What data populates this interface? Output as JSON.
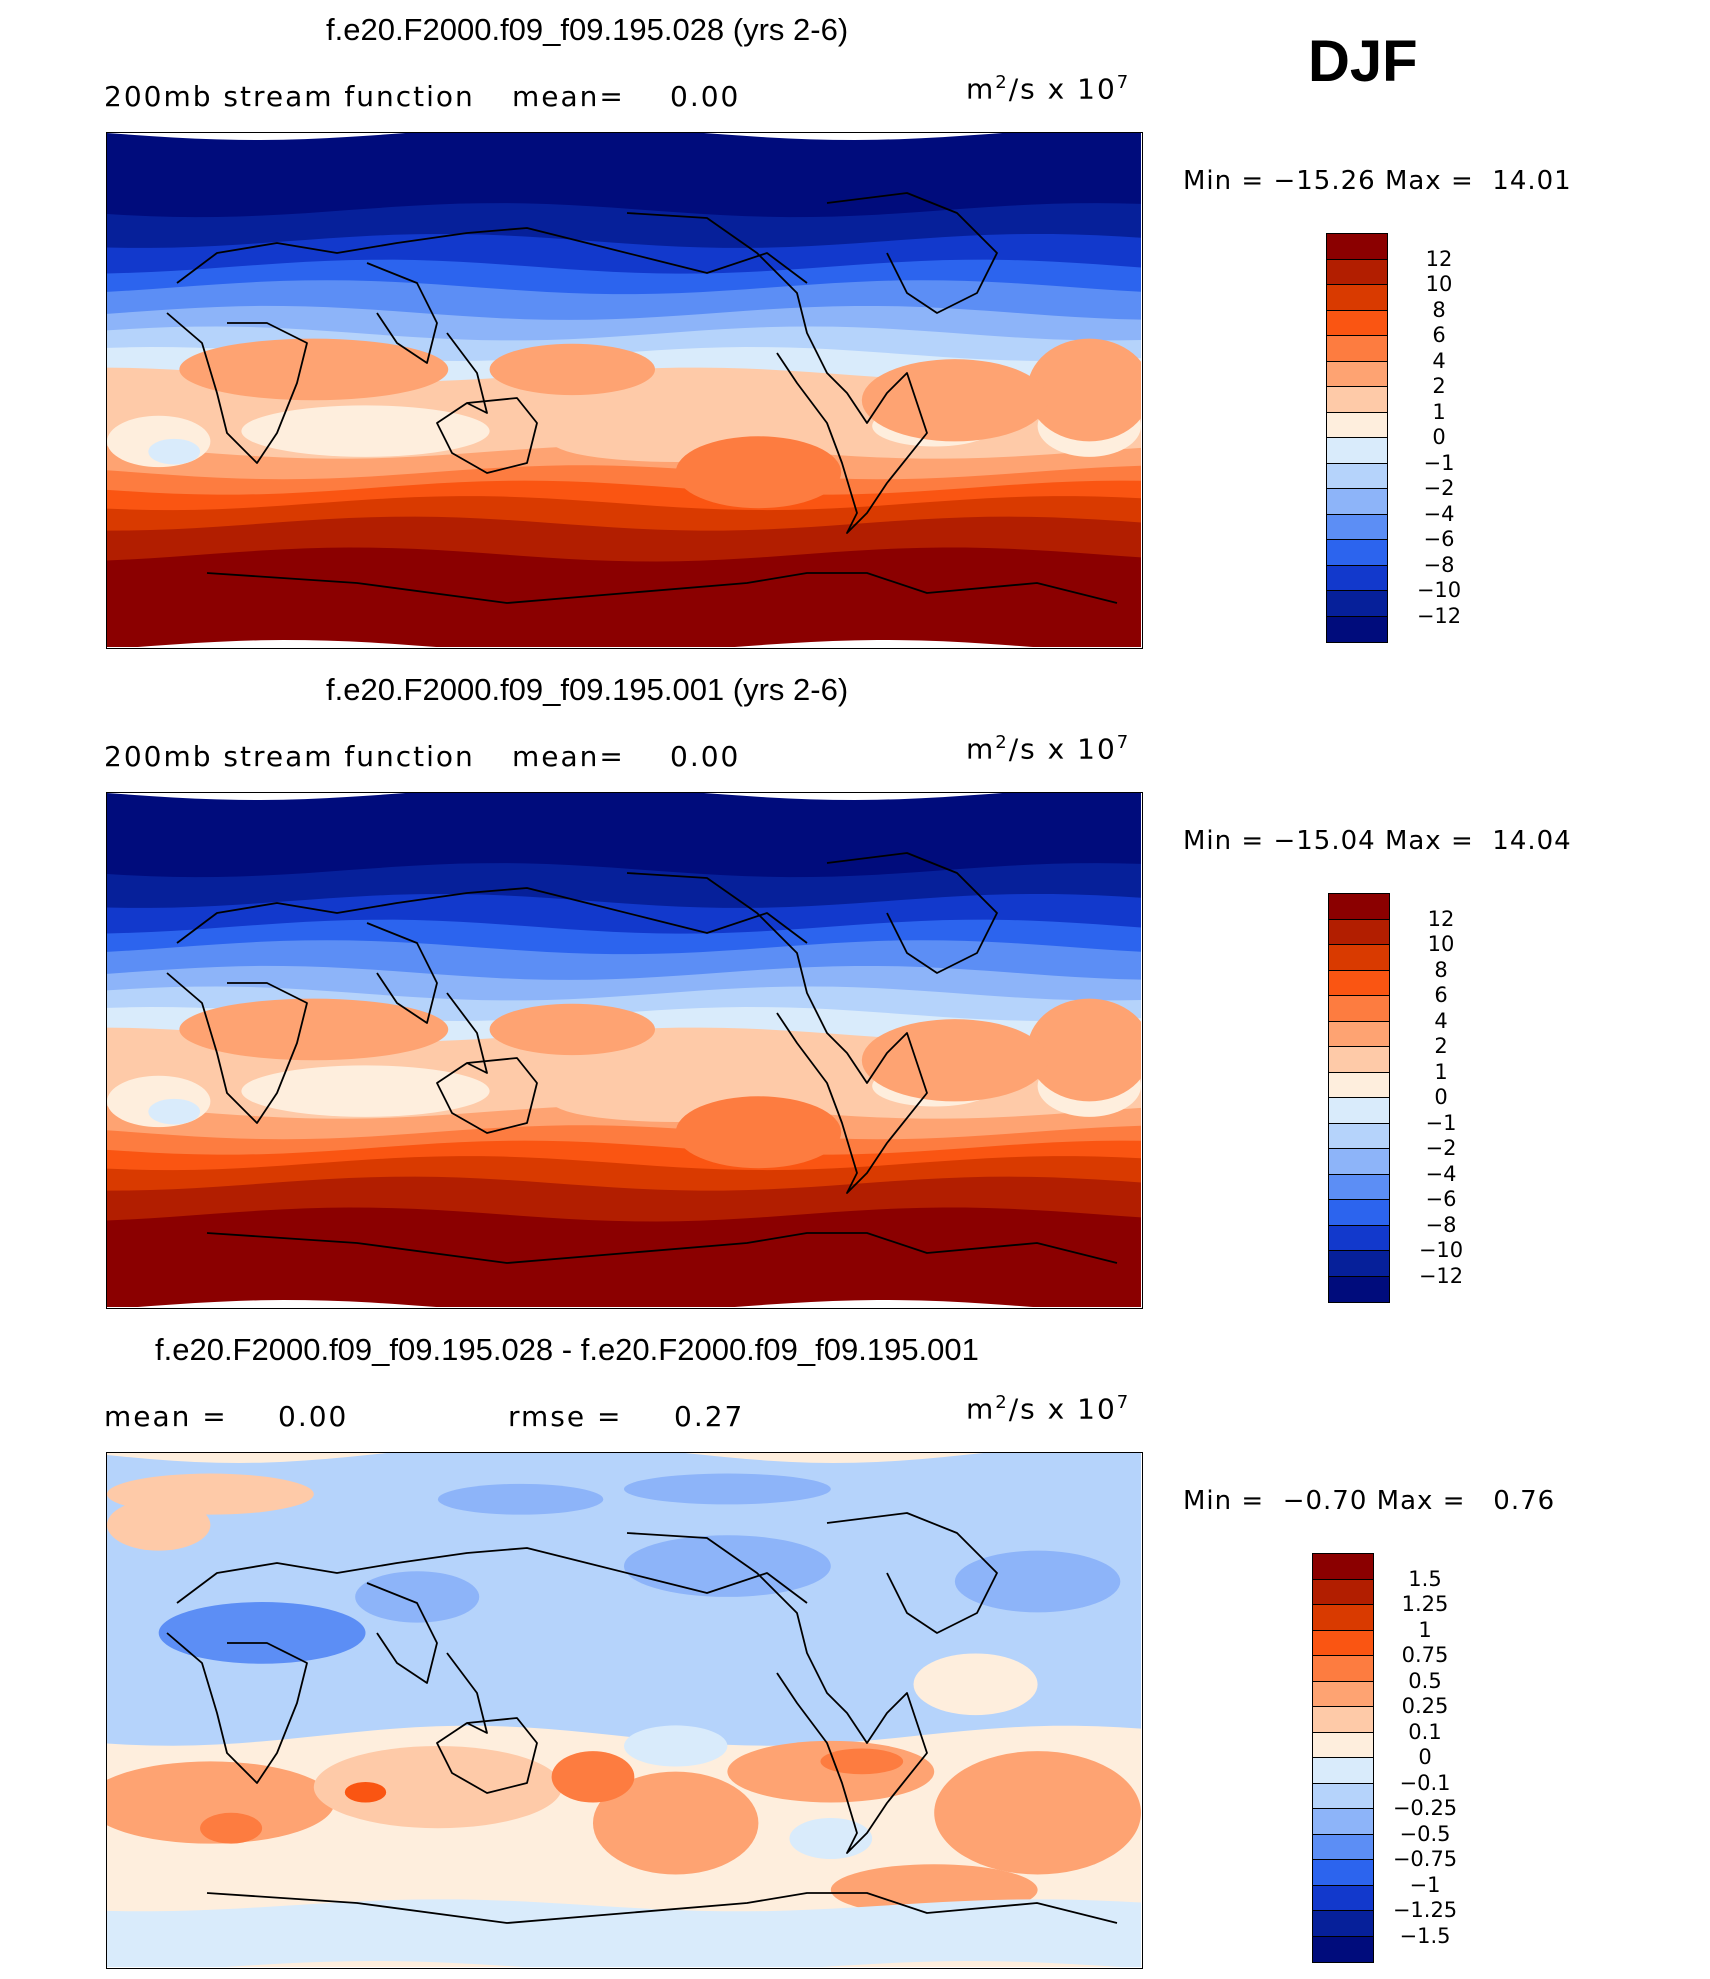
{
  "season": "DJF",
  "panels": [
    {
      "title": "f.e20.F2000.f09_f09.195.028 (yrs 2-6)",
      "left_label": "200mb stream function",
      "stat1_label": "mean=",
      "stat1_value": "0.00",
      "units_base": "m",
      "units_exp": "2",
      "units_mid": "/s x 10",
      "units_exp2": "7",
      "min_label": "Min =",
      "min_value": "−15.26",
      "max_label": "Max =",
      "max_value": "14.01",
      "legend_labels": [
        "12",
        "10",
        "8",
        "6",
        "4",
        "2",
        "1",
        "0",
        "−1",
        "−2",
        "−4",
        "−6",
        "−8",
        "−10",
        "−12"
      ],
      "legend_colors": [
        "#8b0000",
        "#b21e00",
        "#d93a00",
        "#fa5512",
        "#fd7c40",
        "#fea372",
        "#fecaa8",
        "#feeedd",
        "#d9ebfb",
        "#b5d3fb",
        "#8db4f9",
        "#5c8ef5",
        "#2c64ee",
        "#1239cc",
        "#06209a",
        "#000c7c"
      ]
    },
    {
      "title": "f.e20.F2000.f09_f09.195.001 (yrs 2-6)",
      "left_label": "200mb stream function",
      "stat1_label": "mean=",
      "stat1_value": "0.00",
      "units_base": "m",
      "units_exp": "2",
      "units_mid": "/s x 10",
      "units_exp2": "7",
      "min_label": "Min =",
      "min_value": "−15.04",
      "max_label": "Max =",
      "max_value": "14.04",
      "legend_labels": [
        "12",
        "10",
        "8",
        "6",
        "4",
        "2",
        "1",
        "0",
        "−1",
        "−2",
        "−4",
        "−6",
        "−8",
        "−10",
        "−12"
      ],
      "legend_colors": [
        "#8b0000",
        "#b21e00",
        "#d93a00",
        "#fa5512",
        "#fd7c40",
        "#fea372",
        "#fecaa8",
        "#feeedd",
        "#d9ebfb",
        "#b5d3fb",
        "#8db4f9",
        "#5c8ef5",
        "#2c64ee",
        "#1239cc",
        "#06209a",
        "#000c7c"
      ]
    },
    {
      "title": "f.e20.F2000.f09_f09.195.028 - f.e20.F2000.f09_f09.195.001",
      "stat1_label": "mean =",
      "stat1_value": "0.00",
      "stat2_label": "rmse =",
      "stat2_value": "0.27",
      "units_base": "m",
      "units_exp": "2",
      "units_mid": "/s x 10",
      "units_exp2": "7",
      "min_label": "Min =",
      "min_value": "−0.70",
      "max_label": "Max =",
      "max_value": "0.76",
      "legend_labels": [
        "1.5",
        "1.25",
        "1",
        "0.75",
        "0.5",
        "0.25",
        "0.1",
        "0",
        "−0.1",
        "−0.25",
        "−0.5",
        "−0.75",
        "−1",
        "−1.25",
        "−1.5"
      ],
      "legend_colors": [
        "#8b0000",
        "#b21e00",
        "#d93a00",
        "#fa5512",
        "#fd7c40",
        "#fea372",
        "#fecaa8",
        "#feeedd",
        "#d9ebfb",
        "#b5d3fb",
        "#8db4f9",
        "#5c8ef5",
        "#2c64ee",
        "#1239cc",
        "#06209a",
        "#000c7c"
      ]
    }
  ]
}
